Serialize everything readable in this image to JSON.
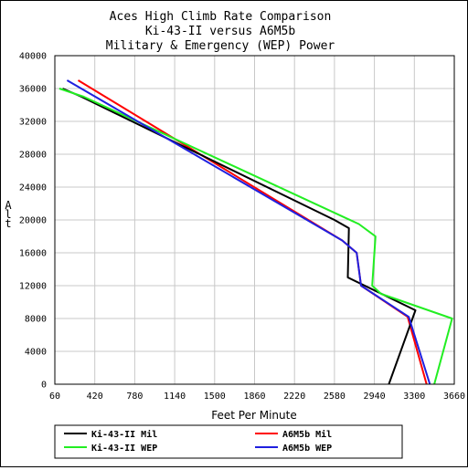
{
  "chart_data": {
    "type": "line",
    "title_lines": [
      "Aces High Climb Rate Comparison",
      "Ki-43-II versus A6M5b",
      "Military & Emergency (WEP) Power"
    ],
    "xlabel": "Feet Per Minute",
    "ylabel": "Alt",
    "xlim": [
      60,
      3660
    ],
    "ylim": [
      0,
      40000
    ],
    "xticks": [
      "60",
      "420",
      "780",
      "1140",
      "1500",
      "1860",
      "2220",
      "2580",
      "2940",
      "3300",
      "3660"
    ],
    "yticks": [
      "0",
      "4000",
      "8000",
      "12000",
      "16000",
      "20000",
      "24000",
      "28000",
      "32000",
      "36000",
      "40000"
    ],
    "grid": true,
    "legend_position": "bottom",
    "series": [
      {
        "name": "Ki-43-II Mil",
        "color": "#000000",
        "points": [
          [
            3070,
            0
          ],
          [
            3310,
            9000
          ],
          [
            2700,
            13000
          ],
          [
            2710,
            19000
          ],
          [
            2580,
            20000
          ],
          [
            300,
            35000
          ],
          [
            130,
            36000
          ]
        ]
      },
      {
        "name": "A6M5b Mil",
        "color": "#ff0000",
        "points": [
          [
            3410,
            0
          ],
          [
            3240,
            8200
          ],
          [
            2820,
            12000
          ],
          [
            2780,
            16000
          ],
          [
            2650,
            17500
          ],
          [
            270,
            37000
          ]
        ]
      },
      {
        "name": "Ki-43-II WEP",
        "color": "#22ee22",
        "points": [
          [
            3480,
            0
          ],
          [
            3640,
            8000
          ],
          [
            3000,
            11000
          ],
          [
            2920,
            12000
          ],
          [
            2950,
            18000
          ],
          [
            2800,
            19500
          ],
          [
            320,
            35000
          ],
          [
            100,
            36000
          ]
        ]
      },
      {
        "name": "A6M5b WEP",
        "color": "#1f1fdf",
        "points": [
          [
            3440,
            0
          ],
          [
            3250,
            8200
          ],
          [
            2820,
            12000
          ],
          [
            2780,
            16000
          ],
          [
            2650,
            17500
          ],
          [
            170,
            37000
          ]
        ]
      }
    ]
  }
}
